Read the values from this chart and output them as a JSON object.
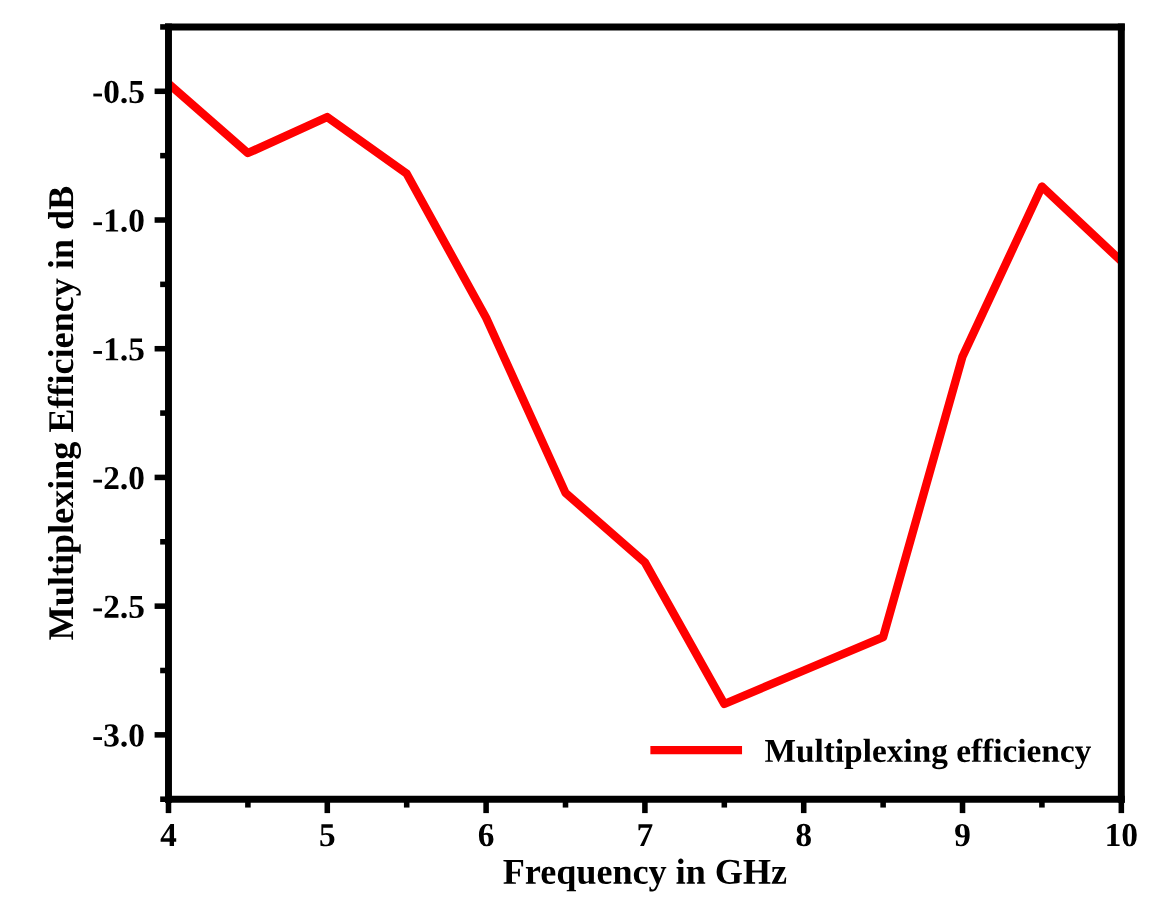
{
  "chart_data": {
    "type": "line",
    "xlabel": "Frequency in GHz",
    "ylabel": "Multiplexing Efficiency in dB",
    "x": [
      4,
      4.5,
      5,
      5.5,
      6,
      6.5,
      7,
      7.5,
      8,
      8.5,
      9,
      9.5,
      10
    ],
    "series": [
      {
        "name": "Multiplexing efficiency",
        "color": "#ff0000",
        "values": [
          -0.47,
          -0.74,
          -0.6,
          -0.82,
          -1.38,
          -2.06,
          -2.33,
          -2.88,
          -2.75,
          -2.62,
          -1.53,
          -0.87,
          -1.16
        ]
      }
    ],
    "xlim": [
      4,
      10
    ],
    "xticks": [
      4,
      5,
      6,
      7,
      8,
      9,
      10
    ],
    "ylim": [
      -3.25,
      -0.25
    ],
    "yticks": [
      {
        "value": -3.0,
        "label": "-3.0"
      },
      {
        "value": -2.5,
        "label": "-2.5"
      },
      {
        "value": -2.0,
        "label": "-2.0"
      },
      {
        "value": -1.5,
        "label": "-1.5"
      },
      {
        "value": -1.0,
        "label": "-1.0"
      },
      {
        "value": -0.5,
        "label": "-0.5"
      }
    ],
    "legend": "bottom right",
    "grid": false,
    "marker": "none",
    "line_style": "solid"
  }
}
